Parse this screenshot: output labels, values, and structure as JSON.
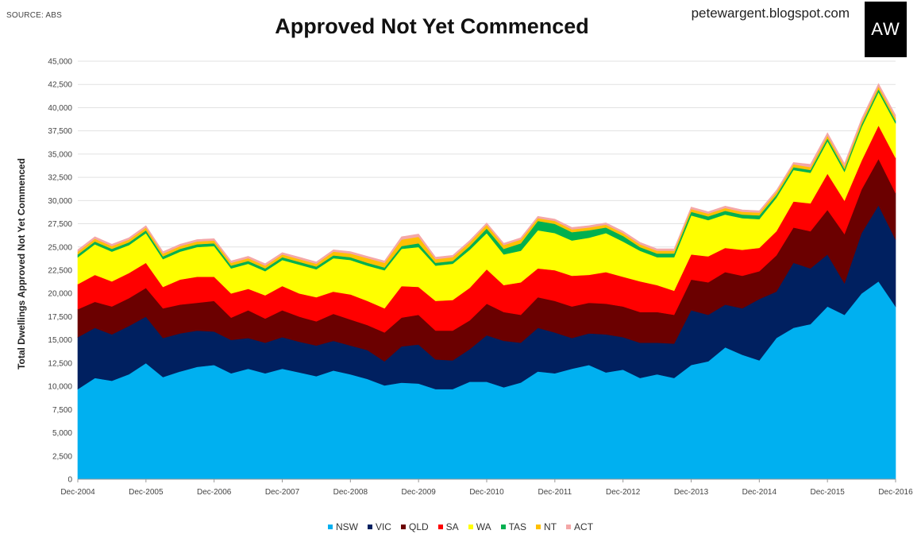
{
  "header": {
    "source": "SOURCE: ABS",
    "blog": "petewargent.blogspot.com",
    "logo": "AW"
  },
  "chart_data": {
    "type": "area",
    "stacked": true,
    "title": "Approved Not Yet Commenced",
    "xlabel": "",
    "ylabel": "Total Dwellings Approved Not Yet Commenced",
    "ylim": [
      0,
      45000
    ],
    "yticks": [
      0,
      2500,
      5000,
      7500,
      10000,
      12500,
      15000,
      17500,
      20000,
      22500,
      25000,
      27500,
      30000,
      32500,
      35000,
      37500,
      40000,
      42500,
      45000
    ],
    "ytick_labels": [
      "0",
      "2,500",
      "5,000",
      "7,500",
      "10,000",
      "12,500",
      "15,000",
      "17,500",
      "20,000",
      "22,500",
      "25,000",
      "27,500",
      "30,000",
      "32,500",
      "35,000",
      "37,500",
      "40,000",
      "42,500",
      "45,000"
    ],
    "xtick_labels": [
      "Dec-2004",
      "Dec-2005",
      "Dec-2006",
      "Dec-2007",
      "Dec-2008",
      "Dec-2009",
      "Dec-2010",
      "Dec-2011",
      "Dec-2012",
      "Dec-2013",
      "Dec-2014",
      "Dec-2015",
      "Dec-2016"
    ],
    "xtick_every": 4,
    "legend_position": "bottom",
    "grid": true,
    "series": [
      {
        "name": "NSW",
        "color": "#00b0f0",
        "values": [
          9700,
          10900,
          10600,
          11300,
          12500,
          11000,
          11600,
          12100,
          12300,
          11400,
          11900,
          11400,
          11900,
          11500,
          11100,
          11700,
          11300,
          10800,
          10100,
          10400,
          10300,
          9700,
          9700,
          10500,
          10500,
          9900,
          10400,
          11600,
          11400,
          11900,
          12300,
          11500,
          11800,
          10900,
          11300,
          10900,
          12300,
          12700,
          14200,
          13400,
          12800,
          15200,
          16300,
          16700,
          18600,
          17700,
          20000,
          21300,
          18600
        ]
      },
      {
        "name": "VIC",
        "color": "#002060",
        "values": [
          5600,
          5400,
          5000,
          5200,
          5000,
          4200,
          4100,
          3900,
          3600,
          3600,
          3300,
          3300,
          3400,
          3300,
          3300,
          3200,
          3100,
          3100,
          2600,
          3900,
          4200,
          3200,
          3100,
          3500,
          5000,
          5000,
          4300,
          4700,
          4400,
          3300,
          3400,
          4100,
          3500,
          3800,
          3400,
          3700,
          5900,
          5000,
          4600,
          5000,
          6600,
          5000,
          7000,
          6000,
          5600,
          3400,
          6500,
          8200,
          7200
        ]
      },
      {
        "name": "QLD",
        "color": "#6b0000",
        "values": [
          3000,
          2800,
          3000,
          3000,
          3100,
          3200,
          3100,
          3000,
          3300,
          2400,
          3000,
          2600,
          2900,
          2700,
          2600,
          2900,
          2800,
          2700,
          3100,
          3100,
          3200,
          3100,
          3200,
          3100,
          3400,
          3100,
          3000,
          3300,
          3400,
          3400,
          3300,
          3300,
          3300,
          3300,
          3300,
          3100,
          3300,
          3500,
          3500,
          3500,
          3000,
          3900,
          3800,
          4000,
          4800,
          5300,
          4700,
          5000,
          5000
        ]
      },
      {
        "name": "SA",
        "color": "#ff0000",
        "values": [
          2700,
          2900,
          2700,
          2700,
          2700,
          2300,
          2700,
          2800,
          2600,
          2600,
          2300,
          2500,
          2600,
          2500,
          2600,
          2400,
          2700,
          2600,
          2600,
          3400,
          3000,
          3200,
          3300,
          3500,
          3700,
          2900,
          3500,
          3100,
          3300,
          3300,
          3000,
          3400,
          3200,
          3300,
          2900,
          2600,
          2700,
          2800,
          2600,
          2800,
          2500,
          2600,
          2800,
          3000,
          3900,
          3600,
          3100,
          3600,
          3800
        ]
      },
      {
        "name": "WA",
        "color": "#ffff00",
        "values": [
          2900,
          3300,
          3200,
          3000,
          3200,
          3000,
          3000,
          3200,
          3300,
          2700,
          2700,
          2600,
          2800,
          3100,
          3000,
          3600,
          3700,
          3800,
          4100,
          4000,
          4300,
          3800,
          3900,
          4100,
          3900,
          3300,
          3400,
          4100,
          4000,
          3800,
          4000,
          4200,
          3800,
          3300,
          3000,
          3600,
          4200,
          3900,
          3600,
          3400,
          3100,
          3600,
          3400,
          3300,
          3500,
          3100,
          3600,
          3600,
          3700
        ]
      },
      {
        "name": "TAS",
        "color": "#00b050",
        "values": [
          300,
          300,
          300,
          300,
          300,
          300,
          300,
          300,
          300,
          300,
          300,
          300,
          300,
          300,
          300,
          300,
          300,
          300,
          300,
          300,
          400,
          300,
          300,
          400,
          500,
          600,
          800,
          1000,
          1000,
          900,
          800,
          600,
          600,
          400,
          400,
          400,
          400,
          400,
          400,
          400,
          400,
          300,
          300,
          300,
          300,
          300,
          300,
          300,
          300
        ]
      },
      {
        "name": "NT",
        "color": "#ffc000",
        "values": [
          300,
          300,
          300,
          300,
          300,
          300,
          300,
          300,
          300,
          300,
          300,
          300,
          300,
          300,
          300,
          400,
          400,
          500,
          500,
          700,
          700,
          400,
          400,
          400,
          400,
          400,
          400,
          300,
          300,
          300,
          300,
          300,
          300,
          300,
          300,
          300,
          300,
          300,
          300,
          300,
          300,
          300,
          300,
          300,
          300,
          300,
          300,
          300,
          300
        ]
      },
      {
        "name": "ACT",
        "color": "#f4a7a7",
        "values": [
          200,
          200,
          200,
          200,
          200,
          200,
          200,
          200,
          200,
          200,
          200,
          200,
          200,
          200,
          200,
          200,
          200,
          200,
          200,
          300,
          300,
          200,
          200,
          200,
          200,
          200,
          200,
          200,
          200,
          200,
          200,
          200,
          200,
          200,
          200,
          200,
          200,
          200,
          200,
          200,
          200,
          200,
          200,
          300,
          300,
          300,
          300,
          300,
          300
        ]
      }
    ]
  }
}
